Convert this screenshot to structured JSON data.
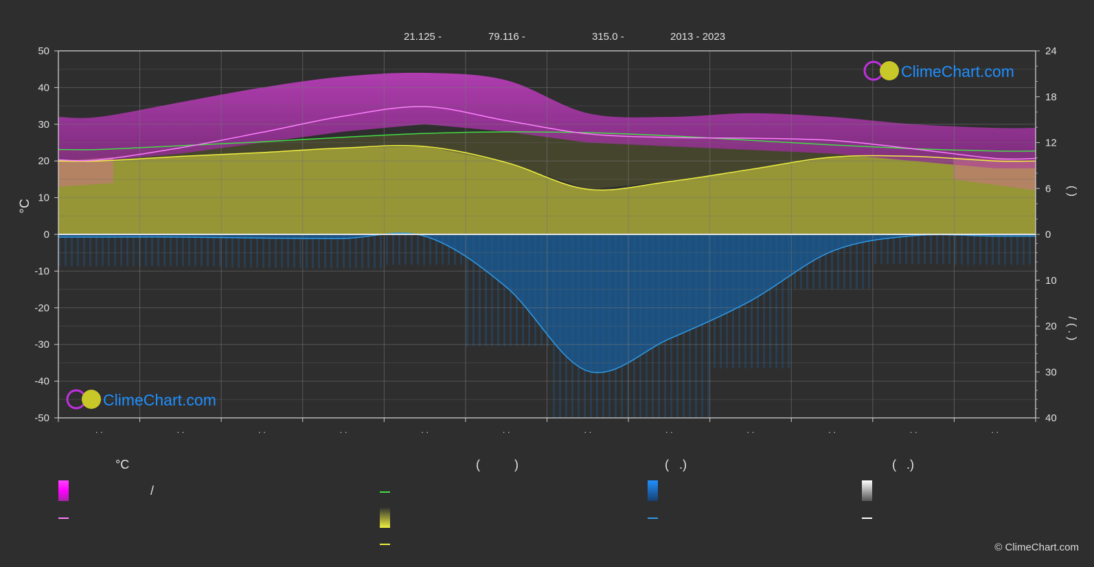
{
  "header": {
    "lat": "21.125 -",
    "lon": "79.116 -",
    "elev": "315.0 -",
    "years": "2013 - 2023"
  },
  "brand": {
    "name": "ClimeChart.com",
    "copyright": "© ClimeChart.com"
  },
  "colors": {
    "background": "#2e2e2e",
    "temp_band": "#c020c0",
    "temp_line": "#ff80ff",
    "daylight_line": "#44dd44",
    "sunshine_fill": "#a8a838",
    "sunshine_line": "#f0f040",
    "rain_fill": "#1a5c98",
    "rain_line": "#2f9ae6",
    "snow_line": "#ffffff",
    "brand_text": "#1e90ff"
  },
  "chart_data": {
    "type": "line",
    "title": "",
    "x_months": 12,
    "x_tick_labels": [
      ". .",
      ". .",
      ". .",
      ". .",
      ". .",
      ". .",
      ". .",
      ". .",
      ". .",
      ". .",
      ". .",
      ". ."
    ],
    "left_axis": {
      "label": "°C",
      "ylim": [
        -50,
        50
      ],
      "ticks": [
        50,
        40,
        30,
        20,
        10,
        0,
        -10,
        -20,
        -30,
        -40,
        -50
      ]
    },
    "right_axis_top": {
      "label": "(   )",
      "ylim": [
        0,
        24
      ],
      "ticks": [
        24,
        18,
        12,
        6,
        0
      ]
    },
    "right_axis_bottom": {
      "label": "/ ( . )",
      "ylim": [
        0,
        40
      ],
      "ticks": [
        0,
        10,
        20,
        30,
        40
      ]
    },
    "grid": true,
    "series": [
      {
        "key": "temp_mean",
        "axis": "left",
        "values": [
          20.3,
          23.6,
          27.8,
          32.2,
          34.8,
          31.0,
          27.4,
          26.4,
          26.2,
          25.6,
          23.3,
          20.7
        ]
      },
      {
        "key": "daylight",
        "axis": "right_top",
        "values": [
          11.1,
          11.6,
          12.1,
          12.7,
          13.2,
          13.4,
          13.3,
          12.9,
          12.3,
          11.7,
          11.2,
          10.9
        ]
      },
      {
        "key": "sunshine",
        "axis": "right_top",
        "values": [
          9.6,
          10.2,
          10.7,
          11.3,
          11.5,
          9.4,
          5.9,
          6.9,
          8.5,
          10.1,
          10.2,
          9.6
        ]
      },
      {
        "key": "precip",
        "axis": "right_bottom",
        "values": [
          0.6,
          0.6,
          0.8,
          0.9,
          0.4,
          11.5,
          29.8,
          22.8,
          14.5,
          3.7,
          0.3,
          0.4
        ]
      }
    ],
    "temp_band_max": [
      32,
      36,
      40,
      43,
      44,
      42,
      33,
      32,
      33,
      32,
      30,
      29
    ],
    "temp_band_min": [
      20,
      22,
      25,
      28,
      30,
      28,
      25,
      24,
      23,
      22,
      20,
      18
    ]
  },
  "legend": {
    "col1_header": "°C",
    "col1_row1": "/",
    "col2_header": "(          )",
    "col3_header": "(   .)",
    "col4_header": "(   .)"
  }
}
